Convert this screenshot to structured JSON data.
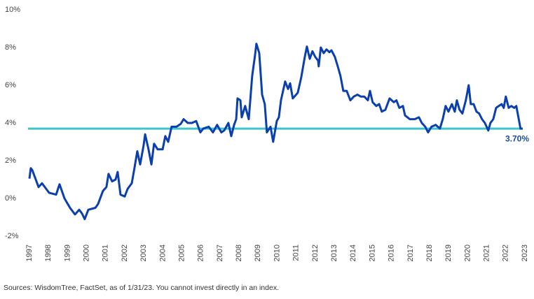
{
  "chart_data": {
    "type": "line",
    "x": [
      1997.0,
      1997.07,
      1997.15,
      1997.48,
      1997.66,
      1998.03,
      1998.4,
      1998.58,
      1998.84,
      1999.13,
      1999.39,
      1999.61,
      1999.76,
      1999.9,
      2000.09,
      2000.46,
      2000.6,
      2000.86,
      2001.04,
      2001.15,
      2001.34,
      2001.52,
      2001.63,
      2001.78,
      2002.0,
      2002.15,
      2002.37,
      2002.51,
      2002.66,
      2002.81,
      2002.99,
      2003.07,
      2003.25,
      2003.4,
      2003.54,
      2003.73,
      2003.99,
      2004.13,
      2004.28,
      2004.46,
      2004.72,
      2004.94,
      2005.09,
      2005.31,
      2005.53,
      2005.75,
      2005.97,
      2006.12,
      2006.41,
      2006.63,
      2006.85,
      2007.07,
      2007.22,
      2007.44,
      2007.59,
      2007.74,
      2007.85,
      2007.92,
      2008.07,
      2008.14,
      2008.32,
      2008.51,
      2008.69,
      2008.84,
      2008.91,
      2009.06,
      2009.21,
      2009.35,
      2009.46,
      2009.65,
      2009.79,
      2009.98,
      2010.09,
      2010.2,
      2010.31,
      2010.42,
      2010.57,
      2010.68,
      2010.82,
      2011.08,
      2011.26,
      2011.45,
      2011.56,
      2011.71,
      2011.85,
      2012.0,
      2012.15,
      2012.18,
      2012.29,
      2012.44,
      2012.59,
      2012.74,
      2012.85,
      2013.03,
      2013.18,
      2013.32,
      2013.47,
      2013.65,
      2013.84,
      2014.02,
      2014.21,
      2014.39,
      2014.57,
      2014.76,
      2014.87,
      2015.01,
      2015.2,
      2015.35,
      2015.49,
      2015.68,
      2015.9,
      2016.12,
      2016.26,
      2016.41,
      2016.6,
      2016.71,
      2016.96,
      2017.22,
      2017.44,
      2017.59,
      2017.77,
      2017.92,
      2018.1,
      2018.32,
      2018.54,
      2018.69,
      2018.84,
      2018.99,
      2019.17,
      2019.32,
      2019.43,
      2019.57,
      2019.72,
      2019.9,
      2020.05,
      2020.16,
      2020.31,
      2020.46,
      2020.6,
      2020.75,
      2020.9,
      2021.08,
      2021.19,
      2021.34,
      2021.49,
      2021.63,
      2021.78,
      2021.89,
      2022.0,
      2022.15,
      2022.29,
      2022.44,
      2022.55,
      2022.66,
      2022.77,
      2022.88
    ],
    "series": [
      {
        "color": "#0b3fae",
        "values": [
          1.05,
          1.6,
          1.5,
          0.6,
          0.8,
          0.3,
          0.2,
          0.75,
          0.0,
          -0.5,
          -0.85,
          -0.6,
          -0.8,
          -1.1,
          -0.6,
          -0.5,
          -0.3,
          0.4,
          0.6,
          1.3,
          0.9,
          1.0,
          1.4,
          0.2,
          0.1,
          0.5,
          0.8,
          1.6,
          2.5,
          1.8,
          2.8,
          3.4,
          2.6,
          1.8,
          2.9,
          2.6,
          2.6,
          3.3,
          3.0,
          3.8,
          3.8,
          3.95,
          4.2,
          4.0,
          4.0,
          4.1,
          3.5,
          3.7,
          3.8,
          3.5,
          3.9,
          3.5,
          3.6,
          4.0,
          3.3,
          3.9,
          4.2,
          5.3,
          5.2,
          4.3,
          4.9,
          4.2,
          6.5,
          7.6,
          8.2,
          7.7,
          5.5,
          5.0,
          3.5,
          3.8,
          3.0,
          4.1,
          4.3,
          5.2,
          5.7,
          6.2,
          5.8,
          6.1,
          5.3,
          5.6,
          6.4,
          7.5,
          8.05,
          7.4,
          7.8,
          7.5,
          7.3,
          7.0,
          8.0,
          7.7,
          7.9,
          7.75,
          7.85,
          7.5,
          7.0,
          6.5,
          5.7,
          5.7,
          5.2,
          5.4,
          5.5,
          5.4,
          5.4,
          5.2,
          5.7,
          5.1,
          4.9,
          5.0,
          4.6,
          4.7,
          5.3,
          5.1,
          5.2,
          4.8,
          4.9,
          4.4,
          4.2,
          4.2,
          4.3,
          4.0,
          3.8,
          3.5,
          3.8,
          3.9,
          3.7,
          4.2,
          4.9,
          4.6,
          5.0,
          4.6,
          5.2,
          4.7,
          4.5,
          5.2,
          6.0,
          5.0,
          5.0,
          4.6,
          4.5,
          4.2,
          4.0,
          3.6,
          4.0,
          4.2,
          4.8,
          4.9,
          5.0,
          4.8,
          5.4,
          4.8,
          4.9,
          4.8,
          4.9,
          4.3,
          3.7,
          3.7
        ]
      }
    ],
    "reference_line": {
      "value": 3.7,
      "label": "3.70%",
      "color": "#3cc5cf",
      "label_color": "#1e4b9e"
    },
    "xlim": [
      1997,
      2023
    ],
    "xticks": [
      1997,
      1998,
      1999,
      2000,
      2001,
      2002,
      2003,
      2004,
      2005,
      2006,
      2007,
      2008,
      2009,
      2010,
      2011,
      2012,
      2013,
      2014,
      2015,
      2016,
      2017,
      2018,
      2019,
      2020,
      2021,
      2022,
      2023
    ],
    "ylim": [
      -2,
      10
    ],
    "yticks": [
      {
        "value": -2,
        "label": "-2%"
      },
      {
        "value": 0,
        "label": "0%"
      },
      {
        "value": 2,
        "label": "2%"
      },
      {
        "value": 4,
        "label": "4%"
      },
      {
        "value": 6,
        "label": "6%"
      },
      {
        "value": 8,
        "label": "8%"
      },
      {
        "value": 10,
        "label": "10%"
      }
    ],
    "grid": false,
    "note": "Sources: WisdomTree, FactSet, as of 1/31/23. You cannot invest directly in an index."
  }
}
